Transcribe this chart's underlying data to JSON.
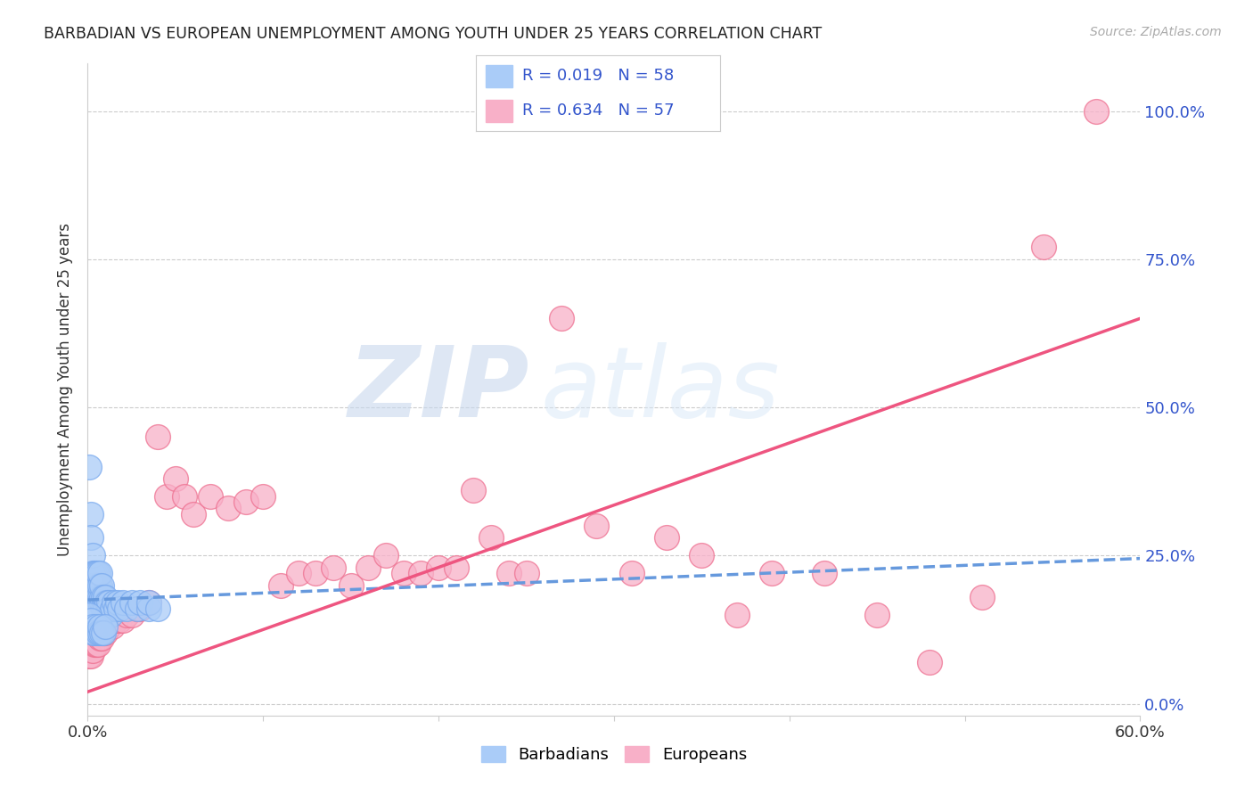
{
  "title": "BARBADIAN VS EUROPEAN UNEMPLOYMENT AMONG YOUTH UNDER 25 YEARS CORRELATION CHART",
  "source": "Source: ZipAtlas.com",
  "ylabel": "Unemployment Among Youth under 25 years",
  "xlim": [
    0.0,
    0.6
  ],
  "ylim": [
    -0.02,
    1.08
  ],
  "yticks": [
    0.0,
    0.25,
    0.5,
    0.75,
    1.0
  ],
  "ytick_labels": [
    "0.0%",
    "25.0%",
    "50.0%",
    "75.0%",
    "100.0%"
  ],
  "xticks": [
    0.0,
    0.1,
    0.2,
    0.3,
    0.4,
    0.5,
    0.6
  ],
  "xtick_labels": [
    "0.0%",
    "",
    "",
    "",
    "",
    "",
    "60.0%"
  ],
  "barbadian_color": "#aaccf8",
  "european_color": "#f8b0c8",
  "barbadian_edge_color": "#7aaaee",
  "european_edge_color": "#ee7090",
  "barbadian_line_color": "#6699dd",
  "european_line_color": "#ee5580",
  "R_barbadian": 0.019,
  "N_barbadian": 58,
  "R_european": 0.634,
  "N_european": 57,
  "legend_text_color": "#3355cc",
  "watermark_zip": "ZIP",
  "watermark_atlas": "atlas",
  "grid_color": "#cccccc",
  "barbadian_x": [
    0.001,
    0.002,
    0.002,
    0.003,
    0.003,
    0.003,
    0.004,
    0.004,
    0.004,
    0.005,
    0.005,
    0.005,
    0.005,
    0.006,
    0.006,
    0.006,
    0.007,
    0.007,
    0.007,
    0.007,
    0.008,
    0.008,
    0.008,
    0.009,
    0.009,
    0.01,
    0.01,
    0.01,
    0.011,
    0.011,
    0.012,
    0.012,
    0.013,
    0.014,
    0.015,
    0.016,
    0.017,
    0.018,
    0.02,
    0.022,
    0.025,
    0.028,
    0.03,
    0.035,
    0.035,
    0.04,
    0.001,
    0.002,
    0.003,
    0.003,
    0.004,
    0.005,
    0.006,
    0.007,
    0.007,
    0.008,
    0.009,
    0.01
  ],
  "barbadian_y": [
    0.4,
    0.32,
    0.28,
    0.25,
    0.22,
    0.2,
    0.22,
    0.2,
    0.18,
    0.2,
    0.18,
    0.16,
    0.22,
    0.2,
    0.18,
    0.22,
    0.18,
    0.17,
    0.2,
    0.22,
    0.17,
    0.18,
    0.2,
    0.16,
    0.18,
    0.17,
    0.18,
    0.16,
    0.17,
    0.15,
    0.16,
    0.17,
    0.15,
    0.16,
    0.17,
    0.16,
    0.17,
    0.16,
    0.17,
    0.16,
    0.17,
    0.16,
    0.17,
    0.16,
    0.17,
    0.16,
    0.15,
    0.14,
    0.13,
    0.12,
    0.12,
    0.13,
    0.12,
    0.12,
    0.13,
    0.12,
    0.12,
    0.13
  ],
  "european_x": [
    0.001,
    0.002,
    0.003,
    0.004,
    0.005,
    0.006,
    0.007,
    0.008,
    0.009,
    0.01,
    0.012,
    0.014,
    0.016,
    0.018,
    0.02,
    0.022,
    0.025,
    0.028,
    0.03,
    0.035,
    0.04,
    0.045,
    0.05,
    0.055,
    0.06,
    0.07,
    0.08,
    0.09,
    0.1,
    0.11,
    0.12,
    0.13,
    0.14,
    0.15,
    0.16,
    0.17,
    0.18,
    0.19,
    0.2,
    0.21,
    0.22,
    0.23,
    0.24,
    0.25,
    0.27,
    0.29,
    0.31,
    0.33,
    0.35,
    0.37,
    0.39,
    0.42,
    0.45,
    0.48,
    0.51,
    0.545,
    0.575
  ],
  "european_y": [
    0.08,
    0.08,
    0.09,
    0.1,
    0.1,
    0.1,
    0.11,
    0.11,
    0.12,
    0.12,
    0.13,
    0.13,
    0.14,
    0.14,
    0.14,
    0.15,
    0.15,
    0.16,
    0.16,
    0.17,
    0.45,
    0.35,
    0.38,
    0.35,
    0.32,
    0.35,
    0.33,
    0.34,
    0.35,
    0.2,
    0.22,
    0.22,
    0.23,
    0.2,
    0.23,
    0.25,
    0.22,
    0.22,
    0.23,
    0.23,
    0.36,
    0.28,
    0.22,
    0.22,
    0.65,
    0.3,
    0.22,
    0.28,
    0.25,
    0.15,
    0.22,
    0.22,
    0.15,
    0.07,
    0.18,
    0.77,
    1.0
  ],
  "blue_line_x": [
    0.0,
    0.6
  ],
  "blue_line_y": [
    0.175,
    0.245
  ],
  "pink_line_x": [
    0.0,
    0.6
  ],
  "pink_line_y": [
    0.02,
    0.65
  ]
}
